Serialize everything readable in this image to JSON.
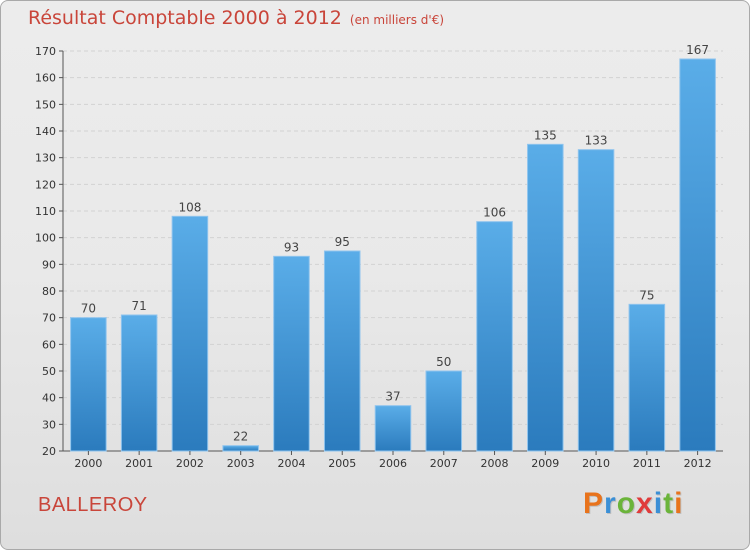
{
  "chart_data": {
    "type": "bar",
    "title": "Résultat Comptable 2000 à 2012",
    "unit_note": "(en milliers d'€)",
    "xlabel": "",
    "ylabel": "",
    "categories": [
      "2000",
      "2001",
      "2002",
      "2003",
      "2004",
      "2005",
      "2006",
      "2007",
      "2008",
      "2009",
      "2010",
      "2011",
      "2012"
    ],
    "values": [
      70,
      71,
      108,
      22,
      93,
      95,
      37,
      50,
      106,
      135,
      133,
      75,
      167
    ],
    "ylim": [
      20,
      170
    ],
    "yticks": [
      20,
      30,
      40,
      50,
      60,
      70,
      80,
      90,
      100,
      110,
      120,
      130,
      140,
      150,
      160,
      170
    ],
    "grid": true,
    "bar_color_top": "#5aade8",
    "bar_color_bottom": "#2b7bbd"
  },
  "footer": {
    "commune": "BALLEROY",
    "brand_letters": [
      "P",
      "r",
      "o",
      "x",
      "i",
      "t",
      "i"
    ],
    "brand_colors": [
      "#e8731c",
      "#3a8fd6",
      "#6bb43a",
      "#e03b3b",
      "#3a8fd6",
      "#6bb43a",
      "#e8731c"
    ]
  },
  "colors": {
    "title": "#c9453a",
    "commune": "#c9453a"
  }
}
